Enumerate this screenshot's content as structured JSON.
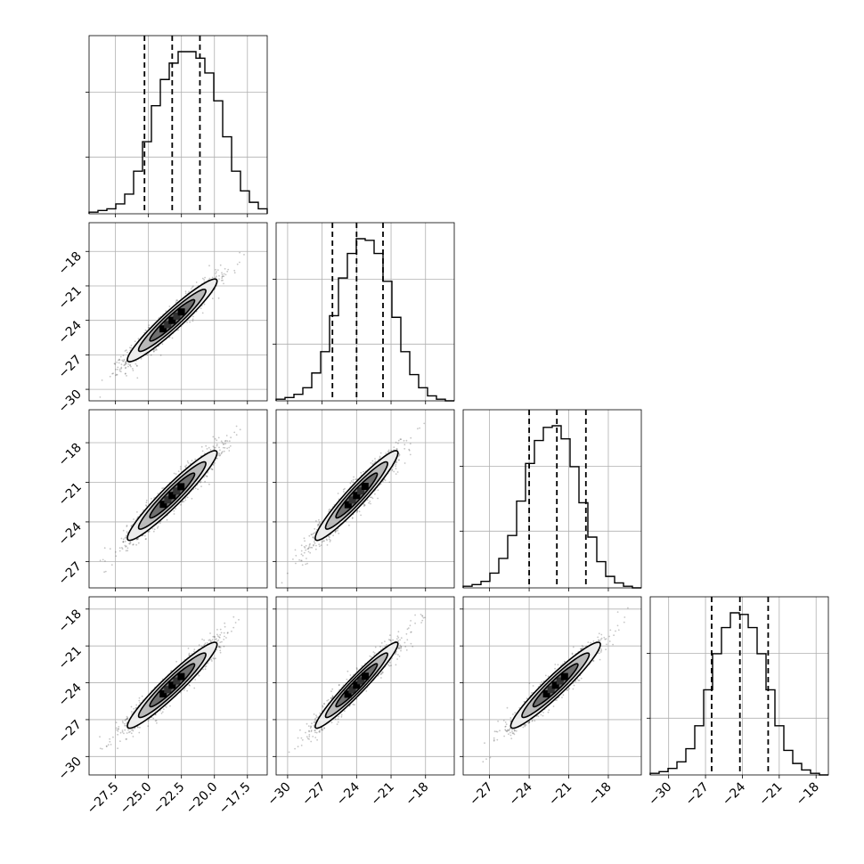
{
  "chart_data": {
    "type": "corner",
    "title": "",
    "params": [
      "",
      "",
      "",
      ""
    ],
    "colors": {
      "line": "#000000",
      "grid": "#b0b0b0",
      "points": "#333333",
      "fill": "#9a9a9a"
    },
    "grid": true,
    "ranges": [
      [
        -29.5,
        -16.0
      ],
      [
        -31.0,
        -15.5
      ],
      [
        -29.0,
        -15.5
      ],
      [
        -31.5,
        -17.0
      ]
    ],
    "ticks": {
      "0": [
        -27.5,
        -25.0,
        -22.5,
        -20.0,
        -17.5
      ],
      "1": [
        -30,
        -27,
        -24,
        -21,
        -18
      ],
      "2": [
        -27,
        -24,
        -21,
        -18
      ],
      "3": [
        -30,
        -27,
        -24,
        -21,
        -18
      ]
    },
    "tick_labels": {
      "0": [
        "−27.5",
        "−25.0",
        "−22.5",
        "−20.0",
        "−17.5"
      ],
      "1": [
        "−30",
        "−27",
        "−24",
        "−21",
        "−18"
      ],
      "2": [
        "−27",
        "−24",
        "−21",
        "−18"
      ],
      "3": [
        "−30",
        "−27",
        "−24",
        "−21",
        "−18"
      ]
    },
    "quantiles": {
      "0": [
        -25.3,
        -23.2,
        -21.1
      ],
      "1": [
        -26.1,
        -24.0,
        -21.7
      ],
      "2": [
        -24.0,
        -21.9,
        -19.7
      ],
      "3": [
        -26.5,
        -24.2,
        -21.9
      ]
    },
    "histograms": [
      {
        "param": 0,
        "edges_start": -29.5,
        "bin_width": 0.675,
        "counts": [
          1,
          2,
          3,
          6,
          12,
          26,
          44,
          66,
          82,
          92,
          99,
          99,
          95,
          86,
          69,
          47,
          26,
          14,
          7,
          3
        ]
      },
      {
        "param": 1,
        "edges_start": -31.0,
        "bin_width": 0.775,
        "counts": [
          1,
          2,
          4,
          8,
          17,
          30,
          52,
          75,
          90,
          99,
          98,
          90,
          73,
          51,
          30,
          16,
          8,
          3,
          1,
          0
        ]
      },
      {
        "param": 2,
        "edges_start": -29.0,
        "bin_width": 0.675,
        "counts": [
          1,
          2,
          4,
          9,
          18,
          32,
          53,
          76,
          90,
          98,
          99,
          91,
          74,
          52,
          31,
          16,
          7,
          3,
          1,
          0
        ]
      },
      {
        "param": 3,
        "edges_start": -31.5,
        "bin_width": 0.725,
        "counts": [
          1,
          2,
          4,
          8,
          16,
          30,
          52,
          74,
          90,
          99,
          98,
          90,
          74,
          52,
          30,
          15,
          7,
          3,
          1,
          0
        ]
      }
    ],
    "pairs": [
      {
        "x": 0,
        "y": 1,
        "center": [
          -23.2,
          -24.0
        ],
        "sd": [
          1.7,
          1.8
        ],
        "rho": 0.95
      },
      {
        "x": 0,
        "y": 2,
        "center": [
          -23.2,
          -22.0
        ],
        "sd": [
          1.7,
          1.7
        ],
        "rho": 0.95
      },
      {
        "x": 1,
        "y": 2,
        "center": [
          -24.0,
          -22.0
        ],
        "sd": [
          1.8,
          1.7
        ],
        "rho": 0.95
      },
      {
        "x": 0,
        "y": 3,
        "center": [
          -23.2,
          -24.2
        ],
        "sd": [
          1.7,
          1.75
        ],
        "rho": 0.95
      },
      {
        "x": 1,
        "y": 3,
        "center": [
          -24.0,
          -24.2
        ],
        "sd": [
          1.8,
          1.75
        ],
        "rho": 0.96
      },
      {
        "x": 2,
        "y": 3,
        "center": [
          -22.0,
          -24.2
        ],
        "sd": [
          1.7,
          1.75
        ],
        "rho": 0.95
      }
    ],
    "contour_levels": [
      0.5,
      1.0,
      1.5,
      2.0
    ]
  }
}
